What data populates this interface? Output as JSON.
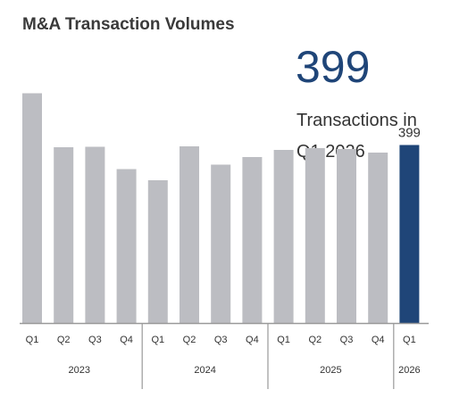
{
  "title": "M&A Transaction Volumes",
  "callout": {
    "value": "399",
    "line1": "Transactions in",
    "line2": "Q1 2026"
  },
  "colors": {
    "bar": "#bcbdc2",
    "highlight": "#1f4578",
    "axis": "#999999",
    "text": "#333333"
  },
  "chart_data": {
    "type": "bar",
    "title": "M&A Transaction Volumes",
    "categories": [
      "Q1",
      "Q2",
      "Q3",
      "Q4",
      "Q1",
      "Q2",
      "Q3",
      "Q4",
      "Q1",
      "Q2",
      "Q3",
      "Q4",
      "Q1"
    ],
    "years": [
      "2023",
      "2023",
      "2023",
      "2023",
      "2024",
      "2024",
      "2024",
      "2024",
      "2025",
      "2025",
      "2025",
      "2025",
      "2026"
    ],
    "year_groups": [
      {
        "label": "2023",
        "count": 4
      },
      {
        "label": "2024",
        "count": 4
      },
      {
        "label": "2025",
        "count": 4
      },
      {
        "label": "2026",
        "count": 1
      }
    ],
    "values": [
      515,
      394,
      395,
      345,
      320,
      396,
      355,
      372,
      388,
      392,
      390,
      382,
      399
    ],
    "highlight_index": 12,
    "data_labels": [
      {
        "index": 12,
        "text": "399"
      }
    ],
    "ylim": [
      0,
      520
    ],
    "grid": false,
    "xlabel": "",
    "ylabel": ""
  }
}
